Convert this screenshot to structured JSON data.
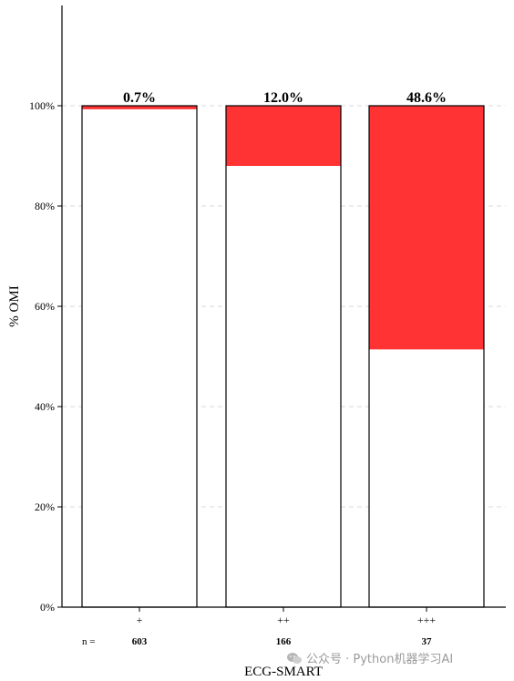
{
  "chart_data": {
    "type": "bar",
    "stacked": true,
    "categories": [
      "+",
      "++",
      "+++"
    ],
    "series": [
      {
        "values": [
          99.3,
          88.0,
          51.4
        ],
        "color": "#ffffff"
      },
      {
        "values": [
          0.7,
          12.0,
          48.6
        ],
        "color": "#ff3333"
      }
    ],
    "bar_labels": [
      "0.7%",
      "12.0%",
      "48.6%"
    ],
    "n_prefix": "n =",
    "n_values": [
      "603",
      "166",
      "37"
    ],
    "xlabel": "ECG-SMART",
    "ylabel": "% OMI",
    "ylim": [
      0,
      120
    ],
    "yticks": [
      0,
      20,
      40,
      60,
      80,
      100
    ],
    "ytick_labels": [
      "0%",
      "20%",
      "40%",
      "60%",
      "80%",
      "100%"
    ],
    "grid": "y-dashed"
  },
  "watermark": {
    "text": "公众号 · Python机器学习AI",
    "icon": "wechat-icon"
  }
}
